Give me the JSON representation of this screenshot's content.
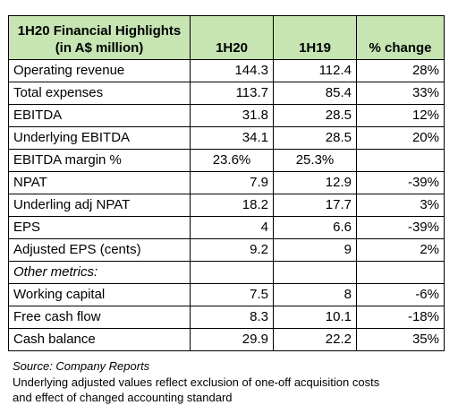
{
  "table": {
    "header": {
      "title_line1": "1H20 Financial Highlights",
      "title_line2": "(in A$ million)",
      "col1": "1H20",
      "col2": "1H19",
      "col3": "% change"
    },
    "rows": [
      {
        "label": "Operating revenue",
        "h20": "144.3",
        "h19": "112.4",
        "chg": "28%"
      },
      {
        "label": "Total expenses",
        "h20": "113.7",
        "h19": "85.4",
        "chg": "33%"
      },
      {
        "label": "EBITDA",
        "h20": "31.8",
        "h19": "28.5",
        "chg": "12%"
      },
      {
        "label": "Underlying EBITDA",
        "h20": "34.1",
        "h19": "28.5",
        "chg": "20%"
      },
      {
        "label": "EBITDA margin %",
        "h20": "23.6%",
        "h19": "25.3%",
        "chg": ""
      },
      {
        "label": "NPAT",
        "h20": "7.9",
        "h19": "12.9",
        "chg": "-39%"
      },
      {
        "label": "Underling adj NPAT",
        "h20": "18.2",
        "h19": "17.7",
        "chg": "3%"
      },
      {
        "label": "EPS",
        "h20": "4",
        "h19": "6.6",
        "chg": "-39%"
      },
      {
        "label": "Adjusted EPS (cents)",
        "h20": "9.2",
        "h19": "9",
        "chg": "2%"
      },
      {
        "label": "Other metrics:",
        "h20": "",
        "h19": "",
        "chg": ""
      },
      {
        "label": "Working capital",
        "h20": "7.5",
        "h19": "8",
        "chg": "-6%"
      },
      {
        "label": "Free cash flow",
        "h20": "8.3",
        "h19": "10.1",
        "chg": "-18%"
      },
      {
        "label": "Cash balance",
        "h20": "29.9",
        "h19": "22.2",
        "chg": "35%"
      }
    ]
  },
  "notes": {
    "source": "Source: Company Reports",
    "line1": "Underlying adjusted values reflect exclusion of one-off acquisition costs",
    "line2": "and effect of changed accounting standard"
  }
}
